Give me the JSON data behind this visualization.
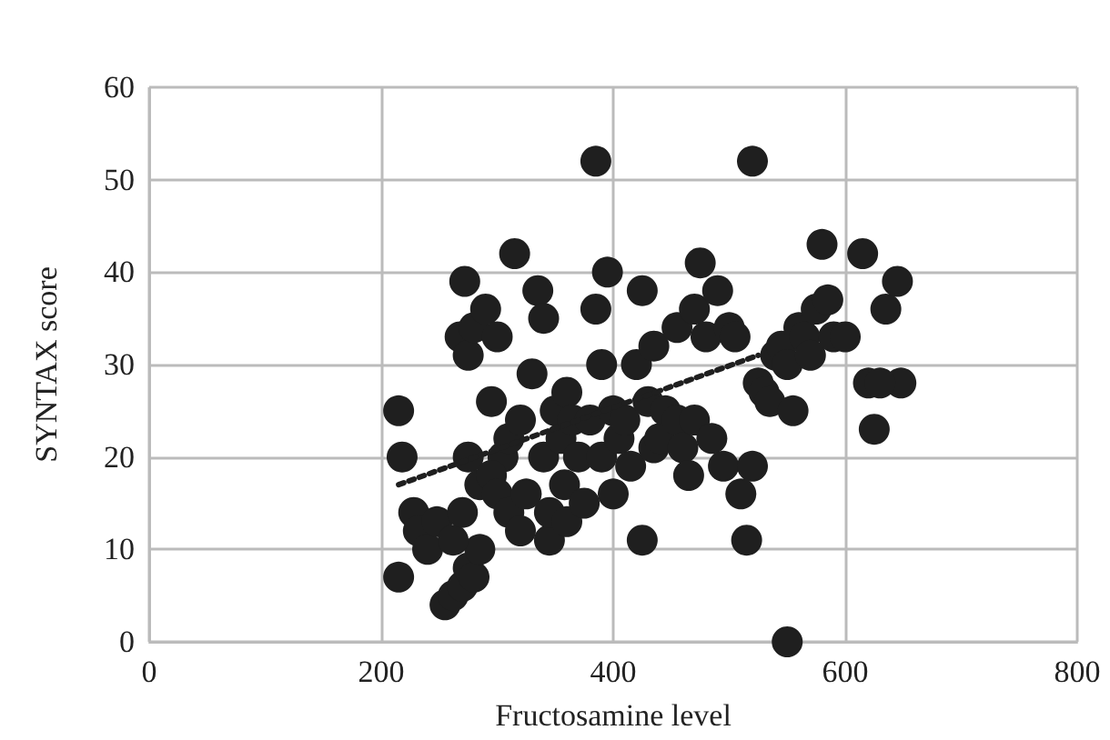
{
  "chart_data": {
    "type": "scatter",
    "xlabel": "Fructosamine level",
    "ylabel": "SYNTAX score",
    "xlim": [
      0,
      800
    ],
    "xticks": [
      0,
      200,
      400,
      600,
      800
    ],
    "ylim": [
      0,
      60
    ],
    "yticks": [
      0,
      10,
      20,
      30,
      40,
      50,
      60
    ],
    "grid": true,
    "marker": "circle",
    "series": [
      {
        "color": "#1f1f1f",
        "x": [
          215,
          218,
          215,
          228,
          232,
          240,
          248,
          255,
          262,
          270,
          275,
          280,
          285,
          262,
          270,
          275,
          268,
          272,
          275,
          280,
          290,
          295,
          300,
          305,
          285,
          295,
          300,
          310,
          310,
          315,
          320,
          320,
          325,
          330,
          335,
          340,
          340,
          345,
          345,
          350,
          355,
          358,
          360,
          360,
          365,
          370,
          375,
          380,
          385,
          385,
          390,
          390,
          395,
          400,
          400,
          405,
          410,
          415,
          420,
          425,
          425,
          430,
          435,
          435,
          440,
          445,
          455,
          455,
          460,
          465,
          470,
          470,
          475,
          480,
          485,
          490,
          495,
          500,
          505,
          510,
          515,
          520,
          520,
          525,
          530,
          535,
          540,
          545,
          550,
          550,
          555,
          560,
          565,
          570,
          575,
          580,
          585,
          590,
          600,
          615,
          620,
          625,
          635,
          645,
          648,
          630
        ],
        "values": [
          25,
          20,
          7,
          14,
          12,
          10,
          13,
          4,
          5,
          6,
          8,
          7,
          10,
          11,
          14,
          20,
          33,
          39,
          31,
          34,
          36,
          26,
          33,
          20,
          17,
          18,
          16,
          14,
          22,
          42,
          24,
          12,
          16,
          29,
          38,
          35,
          20,
          11,
          14,
          25,
          22,
          17,
          13,
          27,
          24,
          20,
          15,
          24,
          52,
          36,
          30,
          20,
          40,
          16,
          25,
          22,
          24,
          19,
          30,
          38,
          11,
          26,
          32,
          21,
          22,
          25,
          24,
          34,
          21,
          18,
          24,
          36,
          41,
          33,
          22,
          38,
          19,
          34,
          33,
          16,
          11,
          52,
          19,
          28,
          27,
          26,
          31,
          32,
          0,
          30,
          25,
          34,
          33,
          31,
          36,
          43,
          37,
          33,
          33,
          42,
          28,
          23,
          36,
          39,
          28,
          28
        ]
      },
      {
        "type": "line",
        "color": "#1f1f1f",
        "line_style": "dotted",
        "marker": "none",
        "x": [
          215,
          525
        ],
        "values": [
          17,
          31
        ]
      }
    ]
  }
}
